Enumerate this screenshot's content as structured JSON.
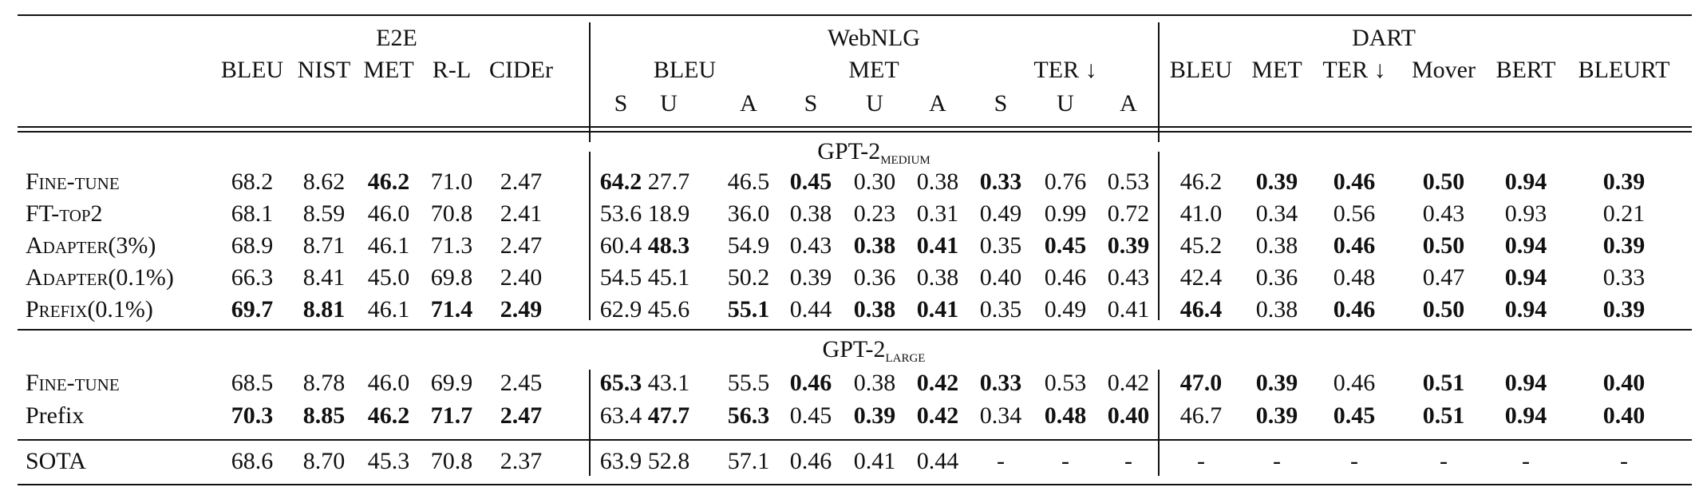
{
  "header": {
    "datasets": [
      "E2E",
      "WebNLG",
      "DART"
    ],
    "e2e_metrics": [
      "BLEU",
      "NIST",
      "MET",
      "R-L",
      "CIDEr"
    ],
    "webnlg_metric_groups": [
      "BLEU",
      "MET",
      "TER ↓"
    ],
    "webnlg_splits": [
      "S",
      "U",
      "A",
      "S",
      "U",
      "A",
      "S",
      "U",
      "A"
    ],
    "dart_metrics": [
      "BLEU",
      "MET",
      "TER ↓",
      "Mover",
      "BERT",
      "BLEURT"
    ]
  },
  "sections": [
    {
      "model": "GPT-2",
      "model_subscript": "MEDIUM",
      "rows": [
        {
          "name": "Fine-tune",
          "smallcaps": true,
          "values": [
            "68.2",
            "8.62",
            "46.2",
            "71.0",
            "2.47",
            "64.2",
            "27.7",
            "46.5",
            "0.45",
            "0.30",
            "0.38",
            "0.33",
            "0.76",
            "0.53",
            "46.2",
            "0.39",
            "0.46",
            "0.50",
            "0.94",
            "0.39"
          ],
          "bold": [
            false,
            false,
            true,
            false,
            false,
            true,
            false,
            false,
            true,
            false,
            false,
            true,
            false,
            false,
            false,
            true,
            true,
            true,
            true,
            true
          ]
        },
        {
          "name": "FT-top2",
          "smallcaps": true,
          "values": [
            "68.1",
            "8.59",
            "46.0",
            "70.8",
            "2.41",
            "53.6",
            "18.9",
            "36.0",
            "0.38",
            "0.23",
            "0.31",
            "0.49",
            "0.99",
            "0.72",
            "41.0",
            "0.34",
            "0.56",
            "0.43",
            "0.93",
            "0.21"
          ],
          "bold": [
            false,
            false,
            false,
            false,
            false,
            false,
            false,
            false,
            false,
            false,
            false,
            false,
            false,
            false,
            false,
            false,
            false,
            false,
            false,
            false
          ]
        },
        {
          "name": "Adapter(3%)",
          "smallcaps": true,
          "values": [
            "68.9",
            "8.71",
            "46.1",
            "71.3",
            "2.47",
            "60.4",
            "48.3",
            "54.9",
            "0.43",
            "0.38",
            "0.41",
            "0.35",
            "0.45",
            "0.39",
            "45.2",
            "0.38",
            "0.46",
            "0.50",
            "0.94",
            "0.39"
          ],
          "bold": [
            false,
            false,
            false,
            false,
            false,
            false,
            true,
            false,
            false,
            true,
            true,
            false,
            true,
            true,
            false,
            false,
            true,
            true,
            true,
            true
          ]
        },
        {
          "name": "Adapter(0.1%)",
          "smallcaps": true,
          "values": [
            "66.3",
            "8.41",
            "45.0",
            "69.8",
            "2.40",
            "54.5",
            "45.1",
            "50.2",
            "0.39",
            "0.36",
            "0.38",
            "0.40",
            "0.46",
            "0.43",
            "42.4",
            "0.36",
            "0.48",
            "0.47",
            "0.94",
            "0.33"
          ],
          "bold": [
            false,
            false,
            false,
            false,
            false,
            false,
            false,
            false,
            false,
            false,
            false,
            false,
            false,
            false,
            false,
            false,
            false,
            false,
            true,
            false
          ]
        },
        {
          "name": "Prefix(0.1%)",
          "smallcaps": true,
          "values": [
            "69.7",
            "8.81",
            "46.1",
            "71.4",
            "2.49",
            "62.9",
            "45.6",
            "55.1",
            "0.44",
            "0.38",
            "0.41",
            "0.35",
            "0.49",
            "0.41",
            "46.4",
            "0.38",
            "0.46",
            "0.50",
            "0.94",
            "0.39"
          ],
          "bold": [
            true,
            true,
            false,
            true,
            true,
            false,
            false,
            true,
            false,
            true,
            true,
            false,
            false,
            false,
            true,
            false,
            true,
            true,
            true,
            true
          ]
        }
      ]
    },
    {
      "model": "GPT-2",
      "model_subscript": "LARGE",
      "rows": [
        {
          "name": "Fine-tune",
          "smallcaps": true,
          "values": [
            "68.5",
            "8.78",
            "46.0",
            "69.9",
            "2.45",
            "65.3",
            "43.1",
            "55.5",
            "0.46",
            "0.38",
            "0.42",
            "0.33",
            "0.53",
            "0.42",
            "47.0",
            "0.39",
            "0.46",
            "0.51",
            "0.94",
            "0.40"
          ],
          "bold": [
            false,
            false,
            false,
            false,
            false,
            true,
            false,
            false,
            true,
            false,
            true,
            true,
            false,
            false,
            true,
            true,
            false,
            true,
            true,
            true
          ]
        },
        {
          "name": "Prefix",
          "smallcaps": false,
          "values": [
            "70.3",
            "8.85",
            "46.2",
            "71.7",
            "2.47",
            "63.4",
            "47.7",
            "56.3",
            "0.45",
            "0.39",
            "0.42",
            "0.34",
            "0.48",
            "0.40",
            "46.7",
            "0.39",
            "0.45",
            "0.51",
            "0.94",
            "0.40"
          ],
          "bold": [
            true,
            true,
            true,
            true,
            true,
            false,
            true,
            true,
            false,
            true,
            true,
            false,
            true,
            true,
            false,
            true,
            true,
            true,
            true,
            true
          ]
        }
      ]
    }
  ],
  "sota": {
    "name": "SOTA",
    "values": [
      "68.6",
      "8.70",
      "45.3",
      "70.8",
      "2.37",
      "63.9",
      "52.8",
      "57.1",
      "0.46",
      "0.41",
      "0.44",
      "-",
      "-",
      "-",
      "-",
      "-",
      "-",
      "-",
      "-",
      "-"
    ]
  }
}
